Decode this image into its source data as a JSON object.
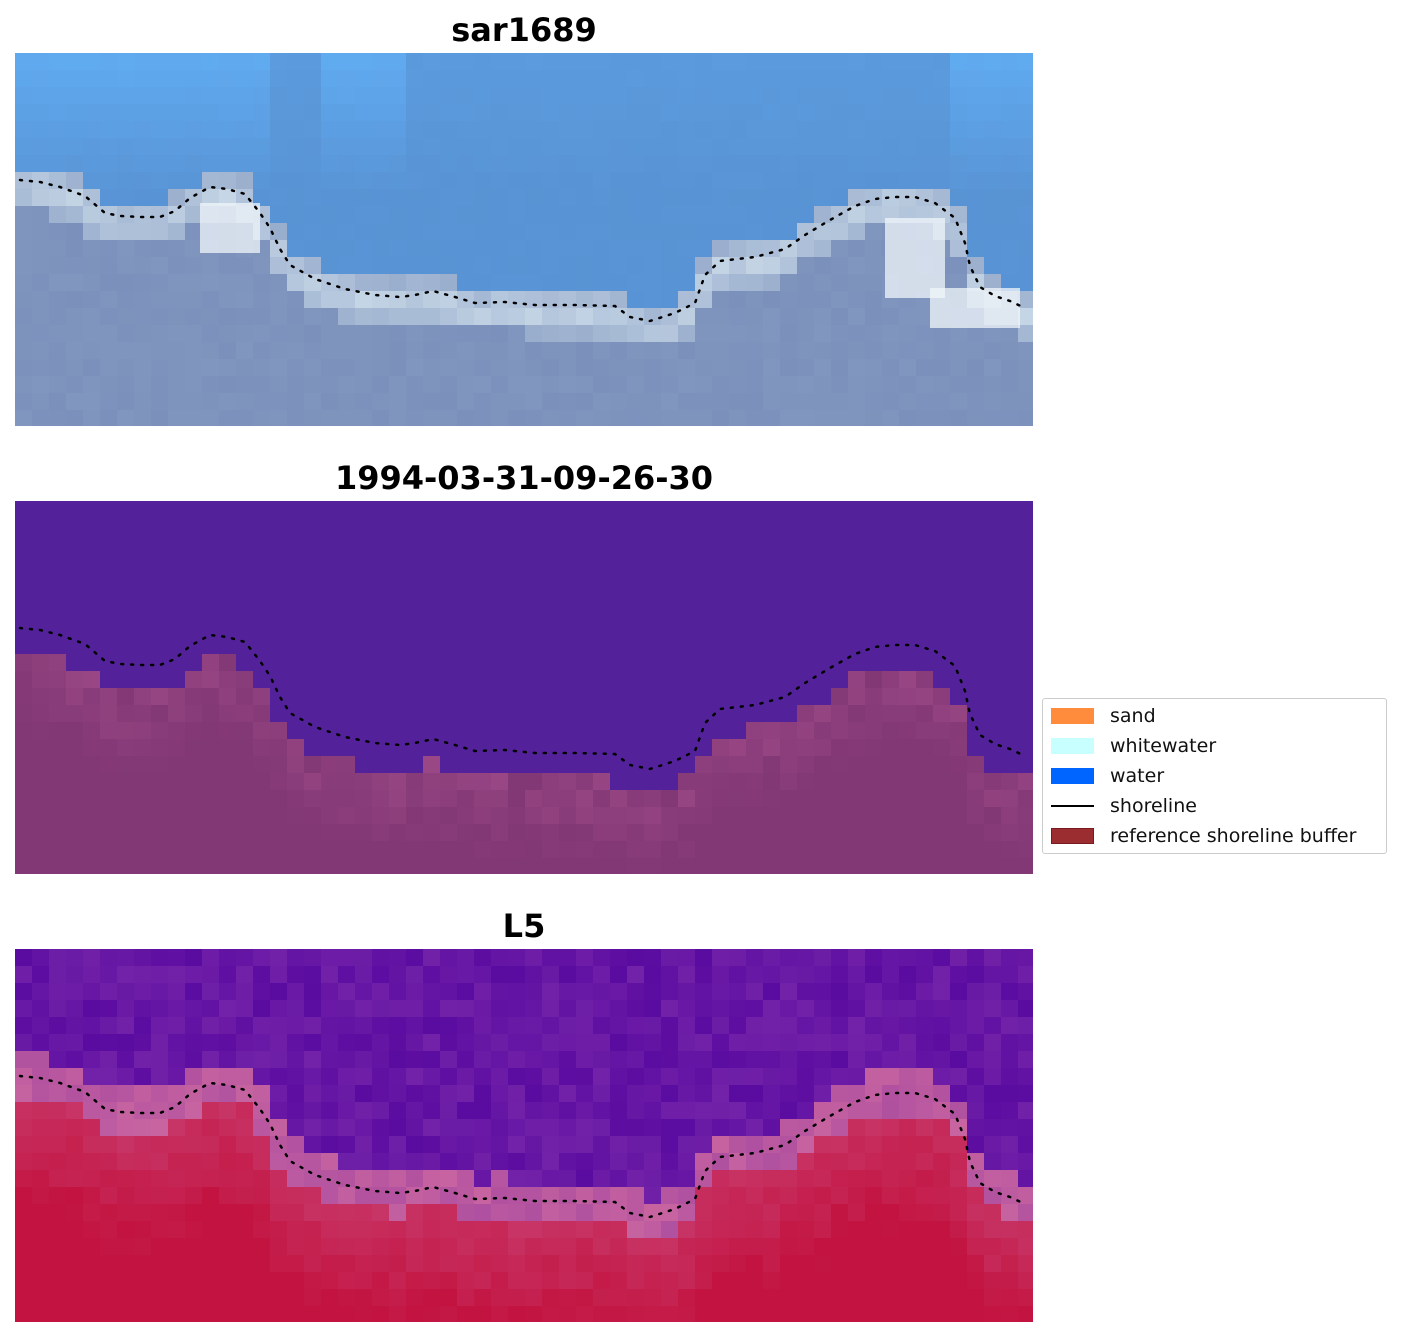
{
  "panels": [
    {
      "title": "sar1689"
    },
    {
      "title": "1994-03-31-09-26-30"
    },
    {
      "title": "L5"
    }
  ],
  "legend": {
    "items": [
      {
        "label": "sand",
        "kind": "patch",
        "color": "#ff8c3c"
      },
      {
        "label": "whitewater",
        "kind": "patch",
        "color": "#c8ffff"
      },
      {
        "label": "water",
        "kind": "patch",
        "color": "#0064ff"
      },
      {
        "label": "shoreline",
        "kind": "line",
        "color": "#000000"
      },
      {
        "label": "reference shoreline buffer",
        "kind": "patch",
        "color": "#9b2d30"
      }
    ]
  },
  "colors": {
    "rgb_sky": "#5b93d4",
    "class_water": "#53229a",
    "buffer": "#833876",
    "index_low": "#5a0ba0",
    "index_high": "#c01040"
  }
}
